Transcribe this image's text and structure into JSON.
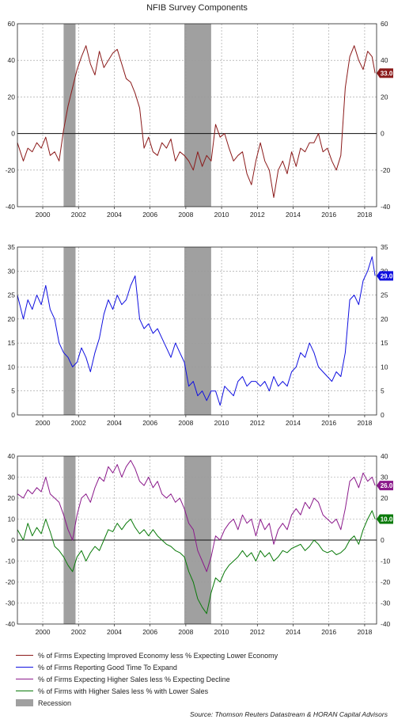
{
  "title": "NFIB Survey Components",
  "source": "Source: Thomson Reuters Datastream & HORAN Capital Advisors",
  "recession_label": "Recession",
  "colors": {
    "improved_economy": "#8b1a1a",
    "good_time_expand": "#1010e0",
    "higher_sales": "#8b1a8b",
    "actual_sales": "#0a7a0a",
    "recession": "#a0a0a0"
  },
  "chart_data": [
    {
      "type": "line",
      "x_ticks": [
        "2000",
        "2002",
        "2004",
        "2006",
        "2008",
        "2010",
        "2012",
        "2014",
        "2016",
        "2018"
      ],
      "xlim": [
        "1998-08",
        "2018-09"
      ],
      "ylim": [
        -40,
        60
      ],
      "y_ticks": [
        "-40",
        "-20",
        "0",
        "20",
        "40",
        "60"
      ],
      "grid": true,
      "recessions": [
        [
          "2001-03",
          "2001-11"
        ],
        [
          "2007-12",
          "2009-06"
        ]
      ],
      "series": [
        {
          "name": "% of Firms Expecting Improved Economy less % Expecting Lower Economy",
          "color_key": "improved_economy",
          "last_label": "33.0",
          "x": [
            "1998-08",
            "1998-12",
            "1999-03",
            "1999-06",
            "1999-09",
            "1999-12",
            "2000-03",
            "2000-06",
            "2000-09",
            "2000-12",
            "2001-03",
            "2001-06",
            "2001-09",
            "2001-12",
            "2002-03",
            "2002-06",
            "2002-09",
            "2002-12",
            "2003-03",
            "2003-06",
            "2003-09",
            "2003-12",
            "2004-03",
            "2004-06",
            "2004-09",
            "2004-12",
            "2005-03",
            "2005-06",
            "2005-09",
            "2005-12",
            "2006-03",
            "2006-06",
            "2006-09",
            "2006-12",
            "2007-03",
            "2007-06",
            "2007-09",
            "2007-12",
            "2008-03",
            "2008-06",
            "2008-09",
            "2008-12",
            "2009-03",
            "2009-06",
            "2009-09",
            "2009-12",
            "2010-03",
            "2010-06",
            "2010-09",
            "2010-12",
            "2011-03",
            "2011-06",
            "2011-09",
            "2011-12",
            "2012-03",
            "2012-06",
            "2012-09",
            "2012-12",
            "2013-03",
            "2013-06",
            "2013-09",
            "2013-12",
            "2014-03",
            "2014-06",
            "2014-09",
            "2014-12",
            "2015-03",
            "2015-06",
            "2015-09",
            "2015-12",
            "2016-03",
            "2016-06",
            "2016-09",
            "2016-12",
            "2017-03",
            "2017-06",
            "2017-09",
            "2017-12",
            "2018-03",
            "2018-06",
            "2018-08"
          ],
          "values": [
            -5,
            -15,
            -8,
            -10,
            -5,
            -8,
            -2,
            -12,
            -10,
            -15,
            2,
            15,
            25,
            35,
            42,
            48,
            38,
            32,
            45,
            36,
            40,
            44,
            46,
            38,
            30,
            28,
            22,
            14,
            -8,
            -2,
            -10,
            -12,
            -5,
            -8,
            -3,
            -15,
            -10,
            -12,
            -15,
            -20,
            -10,
            -18,
            -12,
            -15,
            5,
            -2,
            0,
            -8,
            -15,
            -12,
            -10,
            -22,
            -28,
            -15,
            -5,
            -15,
            -20,
            -35,
            -20,
            -15,
            -22,
            -10,
            -18,
            -8,
            -10,
            -5,
            -5,
            0,
            -10,
            -8,
            -15,
            -20,
            -12,
            25,
            42,
            48,
            40,
            35,
            45,
            42,
            33
          ]
        }
      ]
    },
    {
      "type": "line",
      "x_ticks": [
        "2000",
        "2002",
        "2004",
        "2006",
        "2008",
        "2010",
        "2012",
        "2014",
        "2016",
        "2018"
      ],
      "xlim": [
        "1998-08",
        "2018-09"
      ],
      "ylim": [
        0,
        35
      ],
      "y_ticks": [
        "0",
        "5",
        "10",
        "15",
        "20",
        "25",
        "30",
        "35"
      ],
      "grid": true,
      "recessions": [
        [
          "2001-03",
          "2001-11"
        ],
        [
          "2007-12",
          "2009-06"
        ]
      ],
      "series": [
        {
          "name": "% of Firms Reporting Good Time To Expand",
          "color_key": "good_time_expand",
          "last_label": "29.0",
          "x": [
            "1998-08",
            "1998-12",
            "1999-03",
            "1999-06",
            "1999-09",
            "1999-12",
            "2000-03",
            "2000-06",
            "2000-09",
            "2000-12",
            "2001-03",
            "2001-06",
            "2001-09",
            "2001-12",
            "2002-03",
            "2002-06",
            "2002-09",
            "2002-12",
            "2003-03",
            "2003-06",
            "2003-09",
            "2003-12",
            "2004-03",
            "2004-06",
            "2004-09",
            "2004-12",
            "2005-03",
            "2005-06",
            "2005-09",
            "2005-12",
            "2006-03",
            "2006-06",
            "2006-09",
            "2006-12",
            "2007-03",
            "2007-06",
            "2007-09",
            "2007-12",
            "2008-03",
            "2008-06",
            "2008-09",
            "2008-12",
            "2009-03",
            "2009-06",
            "2009-09",
            "2009-12",
            "2010-03",
            "2010-06",
            "2010-09",
            "2010-12",
            "2011-03",
            "2011-06",
            "2011-09",
            "2011-12",
            "2012-03",
            "2012-06",
            "2012-09",
            "2012-12",
            "2013-03",
            "2013-06",
            "2013-09",
            "2013-12",
            "2014-03",
            "2014-06",
            "2014-09",
            "2014-12",
            "2015-03",
            "2015-06",
            "2015-09",
            "2015-12",
            "2016-03",
            "2016-06",
            "2016-09",
            "2016-12",
            "2017-03",
            "2017-06",
            "2017-09",
            "2017-12",
            "2018-03",
            "2018-06",
            "2018-08"
          ],
          "values": [
            25,
            20,
            24,
            22,
            25,
            23,
            27,
            22,
            20,
            15,
            13,
            12,
            10,
            11,
            14,
            12,
            9,
            13,
            16,
            21,
            24,
            22,
            25,
            23,
            24,
            27,
            29,
            20,
            18,
            19,
            17,
            18,
            16,
            14,
            12,
            15,
            13,
            11,
            6,
            7,
            4,
            5,
            3,
            5,
            5,
            2,
            6,
            5,
            4,
            7,
            8,
            6,
            7,
            7,
            6,
            7,
            5,
            8,
            6,
            7,
            6,
            9,
            10,
            13,
            12,
            15,
            13,
            10,
            9,
            8,
            7,
            9,
            8,
            13,
            24,
            25,
            23,
            28,
            30,
            33,
            29
          ]
        }
      ]
    },
    {
      "type": "line",
      "x_ticks": [
        "2000",
        "2002",
        "2004",
        "2006",
        "2008",
        "2010",
        "2012",
        "2014",
        "2016",
        "2018"
      ],
      "xlim": [
        "1998-08",
        "2018-09"
      ],
      "ylim": [
        -40,
        40
      ],
      "y_ticks": [
        "-40",
        "-30",
        "-20",
        "-10",
        "0",
        "10",
        "20",
        "30",
        "40"
      ],
      "grid": true,
      "recessions": [
        [
          "2001-03",
          "2001-11"
        ],
        [
          "2007-12",
          "2009-06"
        ]
      ],
      "series": [
        {
          "name": "% of Firms Expecting Higher Sales less % Expecting Decline",
          "color_key": "higher_sales",
          "last_label": "26.0",
          "x": [
            "1998-08",
            "1998-12",
            "1999-03",
            "1999-06",
            "1999-09",
            "1999-12",
            "2000-03",
            "2000-06",
            "2000-09",
            "2000-12",
            "2001-03",
            "2001-06",
            "2001-09",
            "2001-12",
            "2002-03",
            "2002-06",
            "2002-09",
            "2002-12",
            "2003-03",
            "2003-06",
            "2003-09",
            "2003-12",
            "2004-03",
            "2004-06",
            "2004-09",
            "2004-12",
            "2005-03",
            "2005-06",
            "2005-09",
            "2005-12",
            "2006-03",
            "2006-06",
            "2006-09",
            "2006-12",
            "2007-03",
            "2007-06",
            "2007-09",
            "2007-12",
            "2008-03",
            "2008-06",
            "2008-09",
            "2008-12",
            "2009-03",
            "2009-06",
            "2009-09",
            "2009-12",
            "2010-03",
            "2010-06",
            "2010-09",
            "2010-12",
            "2011-03",
            "2011-06",
            "2011-09",
            "2011-12",
            "2012-03",
            "2012-06",
            "2012-09",
            "2012-12",
            "2013-03",
            "2013-06",
            "2013-09",
            "2013-12",
            "2014-03",
            "2014-06",
            "2014-09",
            "2014-12",
            "2015-03",
            "2015-06",
            "2015-09",
            "2015-12",
            "2016-03",
            "2016-06",
            "2016-09",
            "2016-12",
            "2017-03",
            "2017-06",
            "2017-09",
            "2017-12",
            "2018-03",
            "2018-06",
            "2018-08"
          ],
          "values": [
            22,
            20,
            24,
            22,
            25,
            23,
            30,
            22,
            20,
            18,
            12,
            5,
            0,
            12,
            20,
            22,
            18,
            25,
            30,
            28,
            35,
            32,
            36,
            30,
            35,
            38,
            34,
            28,
            26,
            30,
            25,
            28,
            22,
            20,
            22,
            18,
            20,
            15,
            8,
            5,
            -5,
            -10,
            -15,
            -8,
            2,
            0,
            5,
            8,
            10,
            5,
            12,
            8,
            10,
            2,
            10,
            5,
            8,
            -2,
            5,
            8,
            5,
            12,
            15,
            12,
            18,
            15,
            20,
            18,
            12,
            10,
            8,
            10,
            5,
            15,
            28,
            30,
            25,
            32,
            28,
            30,
            26
          ]
        },
        {
          "name": "% of Firms with Higher Sales less % with Lower Sales",
          "color_key": "actual_sales",
          "last_label": "10.0",
          "x": [
            "1998-08",
            "1998-12",
            "1999-03",
            "1999-06",
            "1999-09",
            "1999-12",
            "2000-03",
            "2000-06",
            "2000-09",
            "2000-12",
            "2001-03",
            "2001-06",
            "2001-09",
            "2001-12",
            "2002-03",
            "2002-06",
            "2002-09",
            "2002-12",
            "2003-03",
            "2003-06",
            "2003-09",
            "2003-12",
            "2004-03",
            "2004-06",
            "2004-09",
            "2004-12",
            "2005-03",
            "2005-06",
            "2005-09",
            "2005-12",
            "2006-03",
            "2006-06",
            "2006-09",
            "2006-12",
            "2007-03",
            "2007-06",
            "2007-09",
            "2007-12",
            "2008-03",
            "2008-06",
            "2008-09",
            "2008-12",
            "2009-03",
            "2009-06",
            "2009-09",
            "2009-12",
            "2010-03",
            "2010-06",
            "2010-09",
            "2010-12",
            "2011-03",
            "2011-06",
            "2011-09",
            "2011-12",
            "2012-03",
            "2012-06",
            "2012-09",
            "2012-12",
            "2013-03",
            "2013-06",
            "2013-09",
            "2013-12",
            "2014-03",
            "2014-06",
            "2014-09",
            "2014-12",
            "2015-03",
            "2015-06",
            "2015-09",
            "2015-12",
            "2016-03",
            "2016-06",
            "2016-09",
            "2016-12",
            "2017-03",
            "2017-06",
            "2017-09",
            "2017-12",
            "2018-03",
            "2018-06",
            "2018-08"
          ],
          "values": [
            5,
            0,
            8,
            2,
            6,
            3,
            10,
            4,
            -3,
            -5,
            -8,
            -12,
            -15,
            -8,
            -5,
            -10,
            -6,
            -3,
            -5,
            0,
            5,
            4,
            8,
            5,
            8,
            10,
            6,
            3,
            5,
            2,
            5,
            2,
            0,
            -2,
            -3,
            -5,
            -6,
            -8,
            -15,
            -20,
            -28,
            -32,
            -35,
            -25,
            -18,
            -20,
            -15,
            -12,
            -10,
            -8,
            -5,
            -8,
            -6,
            -10,
            -5,
            -8,
            -6,
            -10,
            -8,
            -5,
            -6,
            -4,
            -3,
            -2,
            -5,
            -3,
            0,
            -2,
            -5,
            -6,
            -5,
            -7,
            -6,
            -4,
            0,
            2,
            -2,
            5,
            10,
            14,
            10
          ]
        }
      ]
    }
  ],
  "legend": [
    {
      "label": "% of Firms Expecting Improved Economy less % Expecting Lower Economy",
      "kind": "line",
      "color_key": "improved_economy"
    },
    {
      "label": "% of Firms Reporting Good Time To Expand",
      "kind": "line",
      "color_key": "good_time_expand"
    },
    {
      "label": "% of Firms Expecting Higher Sales less % Expecting Decline",
      "kind": "line",
      "color_key": "higher_sales"
    },
    {
      "label": "% of Firms with Higher Sales less % with Lower Sales",
      "kind": "line",
      "color_key": "actual_sales"
    },
    {
      "label": "Recession",
      "kind": "box",
      "color_key": "recession"
    }
  ]
}
